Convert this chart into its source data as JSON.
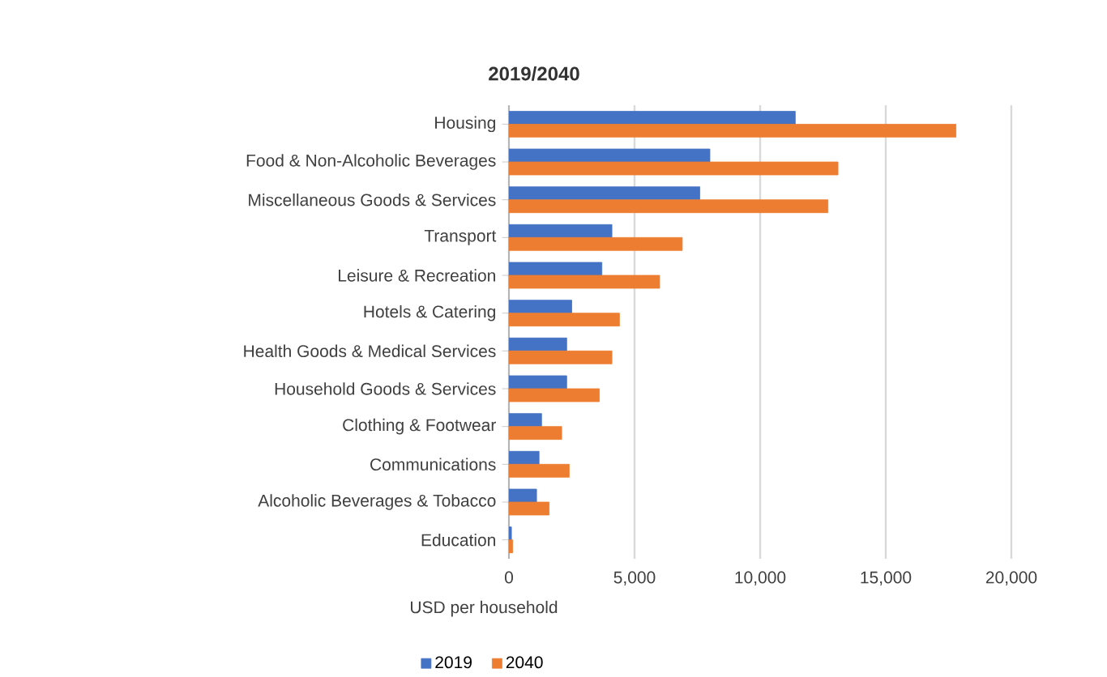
{
  "chart_data": {
    "type": "bar",
    "orientation": "horizontal",
    "title": "2019/2040",
    "xlabel": "USD per household",
    "categories": [
      "Housing",
      "Food & Non-Alcoholic Beverages",
      "Miscellaneous Goods & Services",
      "Transport",
      "Leisure & Recreation",
      "Hotels & Catering",
      "Health Goods & Medical Services",
      "Household Goods & Services",
      "Clothing & Footwear",
      "Communications",
      "Alcoholic Beverages & Tobacco",
      "Education"
    ],
    "series": [
      {
        "name": "2019",
        "color": "#4472c4",
        "values": [
          11400,
          8000,
          7600,
          4100,
          3700,
          2500,
          2300,
          2300,
          1300,
          1200,
          1100,
          100
        ]
      },
      {
        "name": "2040",
        "color": "#ed7d31",
        "values": [
          17800,
          13100,
          12700,
          6900,
          6000,
          4400,
          4100,
          3600,
          2100,
          2400,
          1600,
          150
        ]
      }
    ],
    "xlim": [
      0,
      20000
    ],
    "xticks": [
      0,
      {
        "value": 5000,
        "label": "5,000"
      },
      {
        "value": 10000,
        "label": "10,000"
      },
      {
        "value": 15000,
        "label": "15,000"
      },
      {
        "value": 20000,
        "label": "20,000"
      }
    ],
    "grid": "x",
    "legend": "bottom"
  }
}
